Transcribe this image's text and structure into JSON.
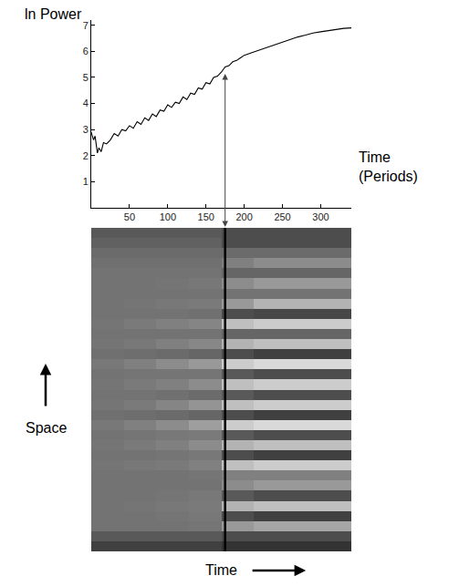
{
  "chart_data": [
    {
      "type": "line",
      "ylabel": "ln Power",
      "xlabel": "Time (Periods)",
      "x": [
        0,
        3,
        5,
        8,
        10,
        13,
        16,
        20,
        25,
        30,
        35,
        40,
        45,
        50,
        55,
        60,
        65,
        70,
        75,
        80,
        85,
        90,
        95,
        100,
        105,
        110,
        115,
        120,
        125,
        130,
        135,
        140,
        145,
        150,
        155,
        160,
        165,
        170,
        175,
        180,
        185,
        190,
        195,
        200,
        210,
        220,
        230,
        240,
        250,
        260,
        270,
        280,
        290,
        300,
        310,
        320,
        330,
        340
      ],
      "values": [
        2.9,
        2.6,
        2.75,
        2.1,
        2.3,
        2.15,
        2.5,
        2.45,
        2.6,
        2.85,
        2.75,
        3.0,
        2.95,
        3.15,
        3.05,
        3.3,
        3.2,
        3.45,
        3.35,
        3.6,
        3.5,
        3.75,
        3.7,
        3.95,
        3.85,
        4.05,
        4.0,
        4.25,
        4.15,
        4.4,
        4.35,
        4.6,
        4.55,
        4.8,
        4.75,
        5.0,
        5.05,
        5.2,
        5.4,
        5.45,
        5.6,
        5.65,
        5.75,
        5.85,
        5.95,
        6.05,
        6.15,
        6.25,
        6.35,
        6.45,
        6.55,
        6.62,
        6.7,
        6.75,
        6.8,
        6.85,
        6.88,
        6.9
      ],
      "color": "#000000",
      "xlim": [
        0,
        340
      ],
      "ylim": [
        0,
        7.2
      ],
      "xticks": [
        50,
        100,
        150,
        200,
        250,
        300
      ],
      "yticks": [
        1,
        2,
        3,
        4,
        5,
        6,
        7
      ],
      "grid": false
    },
    {
      "type": "heatmap",
      "xlabel": "Time",
      "ylabel": "Space",
      "tick_labels": false,
      "marked_time": 175,
      "xlim": [
        0,
        340
      ],
      "ylim": [
        -0.5,
        31.5
      ],
      "zlim": [
        0,
        1
      ],
      "x": [
        21.25,
        63.75,
        106.25,
        148.75,
        191.25,
        233.75,
        276.25,
        318.75
      ],
      "y": [
        0,
        1,
        2,
        3,
        4,
        5,
        6,
        7,
        8,
        9,
        10,
        11,
        12,
        13,
        14,
        15,
        16,
        17,
        18,
        19,
        20,
        21,
        22,
        23,
        24,
        25,
        26,
        27,
        28,
        29,
        30,
        31
      ],
      "cells": [
        [
          0.25,
          0.25,
          0.25,
          0.25,
          0.2,
          0.2,
          0.2,
          0.2
        ],
        [
          0.35,
          0.35,
          0.35,
          0.35,
          0.3,
          0.3,
          0.3,
          0.3
        ],
        [
          0.45,
          0.45,
          0.45,
          0.46,
          0.6,
          0.65,
          0.65,
          0.65
        ],
        [
          0.45,
          0.45,
          0.46,
          0.47,
          0.3,
          0.25,
          0.25,
          0.25
        ],
        [
          0.45,
          0.46,
          0.47,
          0.48,
          0.7,
          0.75,
          0.75,
          0.75
        ],
        [
          0.45,
          0.45,
          0.46,
          0.47,
          0.35,
          0.3,
          0.3,
          0.3
        ],
        [
          0.45,
          0.45,
          0.45,
          0.45,
          0.55,
          0.6,
          0.6,
          0.6
        ],
        [
          0.45,
          0.45,
          0.45,
          0.46,
          0.5,
          0.5,
          0.5,
          0.5
        ],
        [
          0.46,
          0.47,
          0.48,
          0.5,
          0.75,
          0.8,
          0.8,
          0.8
        ],
        [
          0.45,
          0.45,
          0.46,
          0.47,
          0.3,
          0.25,
          0.25,
          0.25
        ],
        [
          0.46,
          0.48,
          0.5,
          0.55,
          0.7,
          0.75,
          0.75,
          0.75
        ],
        [
          0.45,
          0.46,
          0.47,
          0.48,
          0.35,
          0.3,
          0.3,
          0.3
        ],
        [
          0.47,
          0.5,
          0.55,
          0.62,
          0.8,
          0.85,
          0.85,
          0.85
        ],
        [
          0.44,
          0.43,
          0.42,
          0.4,
          0.3,
          0.25,
          0.25,
          0.25
        ],
        [
          0.46,
          0.48,
          0.52,
          0.58,
          0.75,
          0.8,
          0.8,
          0.8
        ],
        [
          0.45,
          0.45,
          0.44,
          0.42,
          0.35,
          0.3,
          0.3,
          0.3
        ],
        [
          0.46,
          0.48,
          0.5,
          0.55,
          0.75,
          0.8,
          0.8,
          0.8
        ],
        [
          0.45,
          0.46,
          0.46,
          0.46,
          0.35,
          0.3,
          0.3,
          0.3
        ],
        [
          0.47,
          0.5,
          0.55,
          0.6,
          0.8,
          0.85,
          0.85,
          0.85
        ],
        [
          0.44,
          0.43,
          0.42,
          0.4,
          0.3,
          0.25,
          0.25,
          0.25
        ],
        [
          0.46,
          0.47,
          0.5,
          0.53,
          0.7,
          0.75,
          0.75,
          0.75
        ],
        [
          0.45,
          0.45,
          0.45,
          0.45,
          0.4,
          0.4,
          0.4,
          0.4
        ],
        [
          0.46,
          0.48,
          0.5,
          0.52,
          0.75,
          0.8,
          0.8,
          0.8
        ],
        [
          0.45,
          0.45,
          0.45,
          0.44,
          0.3,
          0.28,
          0.28,
          0.28
        ],
        [
          0.45,
          0.46,
          0.47,
          0.48,
          0.6,
          0.7,
          0.7,
          0.7
        ],
        [
          0.45,
          0.45,
          0.45,
          0.45,
          0.45,
          0.45,
          0.45,
          0.45
        ],
        [
          0.45,
          0.45,
          0.46,
          0.47,
          0.55,
          0.6,
          0.6,
          0.6
        ],
        [
          0.45,
          0.45,
          0.45,
          0.45,
          0.4,
          0.4,
          0.4,
          0.4
        ],
        [
          0.44,
          0.44,
          0.44,
          0.44,
          0.5,
          0.55,
          0.55,
          0.55
        ],
        [
          0.42,
          0.42,
          0.42,
          0.42,
          0.42,
          0.42,
          0.42,
          0.42
        ],
        [
          0.38,
          0.38,
          0.38,
          0.38,
          0.3,
          0.3,
          0.3,
          0.3
        ],
        [
          0.35,
          0.35,
          0.35,
          0.35,
          0.3,
          0.3,
          0.3,
          0.3
        ]
      ]
    }
  ]
}
